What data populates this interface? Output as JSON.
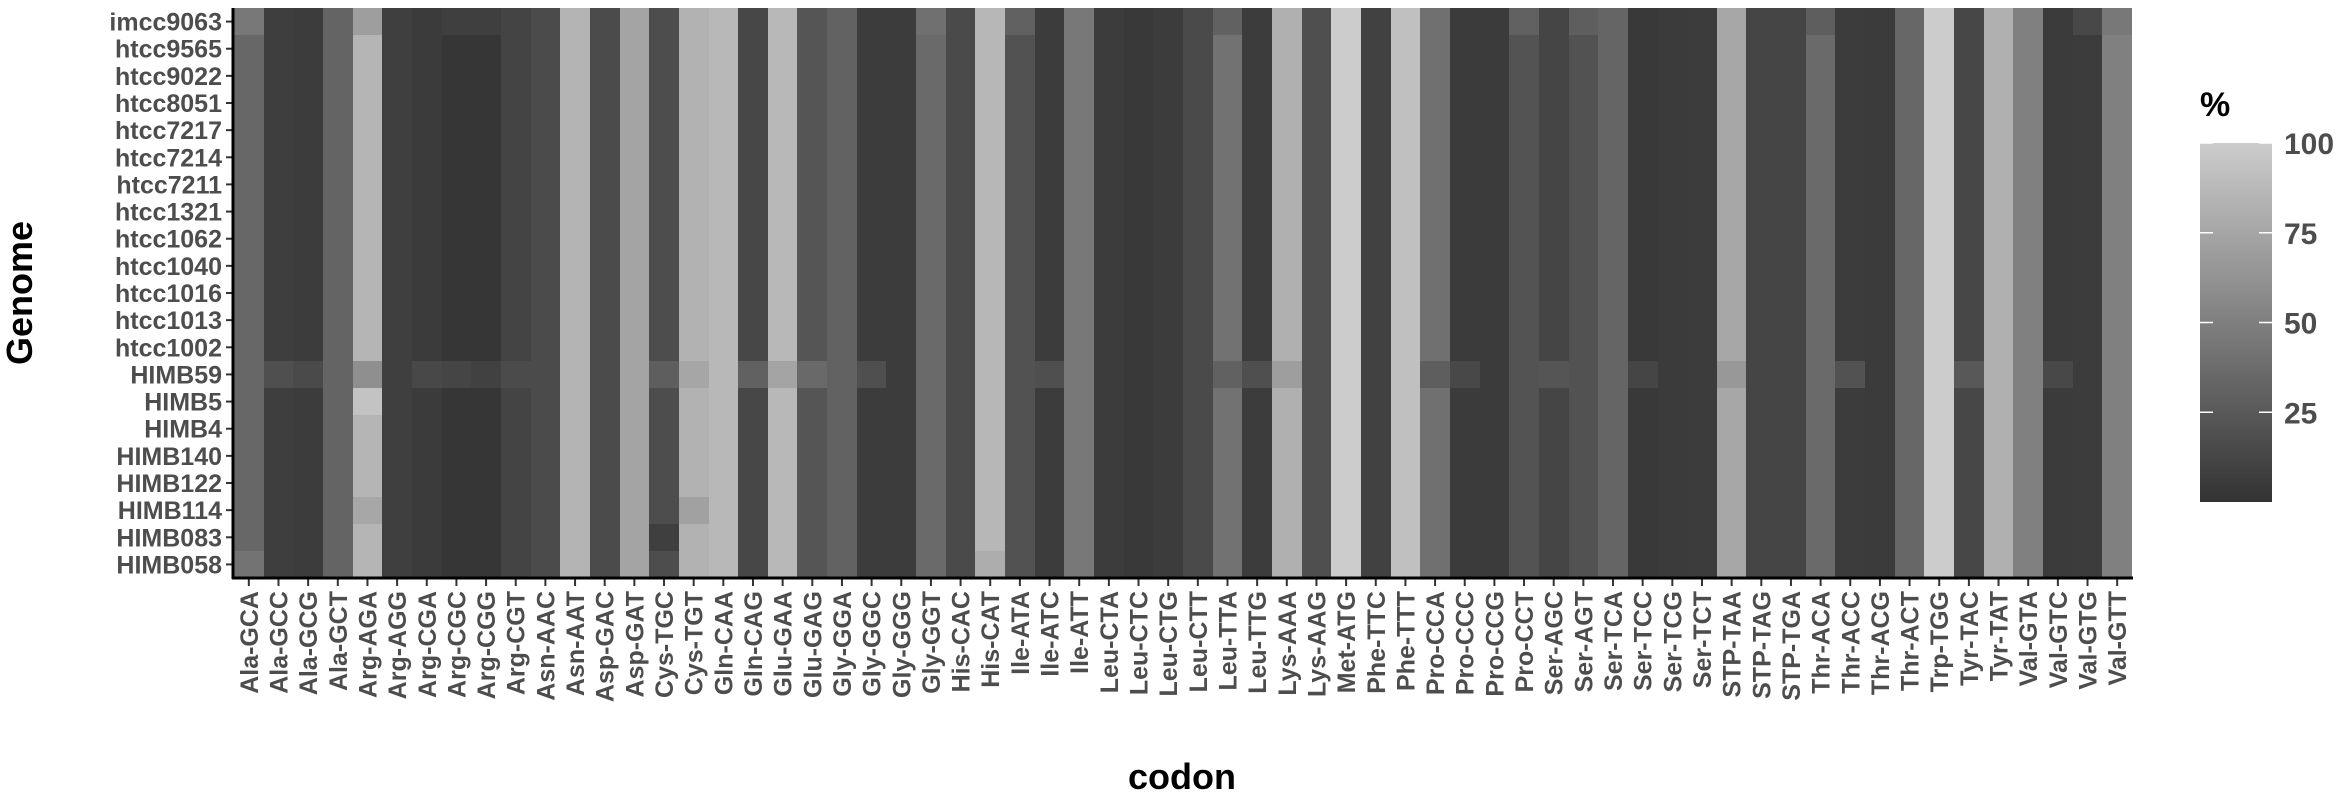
{
  "chart_data": {
    "type": "heatmap",
    "xlabel": "codon",
    "ylabel": "Genome",
    "legend": {
      "title": "%",
      "ticks": [
        25,
        50,
        75,
        100
      ],
      "range": [
        0,
        100
      ],
      "low_color": "#333333",
      "high_color": "#cccccc",
      "placement": "right"
    },
    "y_categories": [
      "imcc9063",
      "htcc9565",
      "htcc9022",
      "htcc8051",
      "htcc7217",
      "htcc7214",
      "htcc7211",
      "htcc1321",
      "htcc1062",
      "htcc1040",
      "htcc1016",
      "htcc1013",
      "htcc1002",
      "HIMB59",
      "HIMB5",
      "HIMB4",
      "HIMB140",
      "HIMB122",
      "HIMB114",
      "HIMB083",
      "HIMB058"
    ],
    "x_categories": [
      "Ala-GCA",
      "Ala-GCC",
      "Ala-GCG",
      "Ala-GCT",
      "Arg-AGA",
      "Arg-AGG",
      "Arg-CGA",
      "Arg-CGC",
      "Arg-CGG",
      "Arg-CGT",
      "Asn-AAC",
      "Asn-AAT",
      "Asp-GAC",
      "Asp-GAT",
      "Cys-TGC",
      "Cys-TGT",
      "Gln-CAA",
      "Gln-CAG",
      "Glu-GAA",
      "Glu-GAG",
      "Gly-GGA",
      "Gly-GGC",
      "Gly-GGG",
      "Gly-GGT",
      "His-CAC",
      "His-CAT",
      "Ile-ATA",
      "Ile-ATC",
      "Ile-ATT",
      "Leu-CTA",
      "Leu-CTC",
      "Leu-CTG",
      "Leu-CTT",
      "Leu-TTA",
      "Leu-TTG",
      "Lys-AAA",
      "Lys-AAG",
      "Met-ATG",
      "Phe-TTC",
      "Phe-TTT",
      "Pro-CCA",
      "Pro-CCC",
      "Pro-CCG",
      "Pro-CCT",
      "Ser-AGC",
      "Ser-AGT",
      "Ser-TCA",
      "Ser-TCC",
      "Ser-TCG",
      "Ser-TCT",
      "STP-TAA",
      "STP-TAG",
      "STP-TGA",
      "Thr-ACA",
      "Thr-ACC",
      "Thr-ACG",
      "Thr-ACT",
      "Trp-TGG",
      "Tyr-TAC",
      "Tyr-TAT",
      "Val-GTA",
      "Val-GTC",
      "Val-GTG",
      "Val-GTT"
    ],
    "base_values": [
      34,
      7,
      6,
      32,
      85,
      8,
      5,
      2,
      2,
      11,
      16,
      84,
      16,
      74,
      17,
      83,
      87,
      13,
      87,
      22,
      31,
      6,
      6,
      36,
      15,
      86,
      20,
      6,
      45,
      6,
      4,
      6,
      15,
      41,
      6,
      82,
      18,
      100,
      9,
      92,
      40,
      5,
      5,
      21,
      12,
      20,
      33,
      4,
      5,
      6,
      76,
      12,
      12,
      36,
      6,
      5,
      34,
      100,
      13,
      82,
      50,
      5,
      6,
      50
    ],
    "overrides": [
      {
        "row": "imcc9063",
        "values": {
          "Ala-GCA": 45,
          "Arg-AGA": 70,
          "Arg-CGC": 8,
          "Arg-CGG": 8,
          "Gly-GGT": 40,
          "Ile-ATA": 30,
          "Leu-TTA": 30,
          "Pro-CCT": 30,
          "Ser-AGT": 28,
          "Thr-ACA": 28,
          "Val-GTG": 14,
          "Val-GTT": 45
        }
      },
      {
        "row": "HIMB59",
        "values": {
          "Ala-GCC": 18,
          "Ala-GCG": 15,
          "Arg-AGA": 60,
          "Arg-CGA": 14,
          "Arg-CGC": 12,
          "Arg-CGG": 9,
          "Arg-CGT": 16,
          "Cys-TGC": 28,
          "Cys-TGT": 75,
          "Gln-CAG": 30,
          "Glu-GAA": 74,
          "Glu-GAG": 35,
          "Gly-GGC": 18,
          "Ile-ATC": 18,
          "Leu-TTA": 30,
          "Leu-TTG": 18,
          "Lys-AAA": 70,
          "Pro-CCA": 28,
          "Pro-CCC": 14,
          "Ser-AGC": 22,
          "Ser-TCC": 12,
          "STP-TAA": 66,
          "Thr-ACC": 20,
          "Tyr-TAC": 24,
          "Val-GTC": 14
        }
      },
      {
        "row": "HIMB5",
        "values": {
          "Arg-AGA": 94
        }
      },
      {
        "row": "HIMB114",
        "values": {
          "Arg-AGA": 76,
          "Cys-TGT": 72
        }
      },
      {
        "row": "HIMB083",
        "values": {
          "Cys-TGC": 8
        }
      },
      {
        "row": "HIMB058",
        "values": {
          "Ala-GCA": 42,
          "His-CAT": 80
        }
      }
    ]
  }
}
